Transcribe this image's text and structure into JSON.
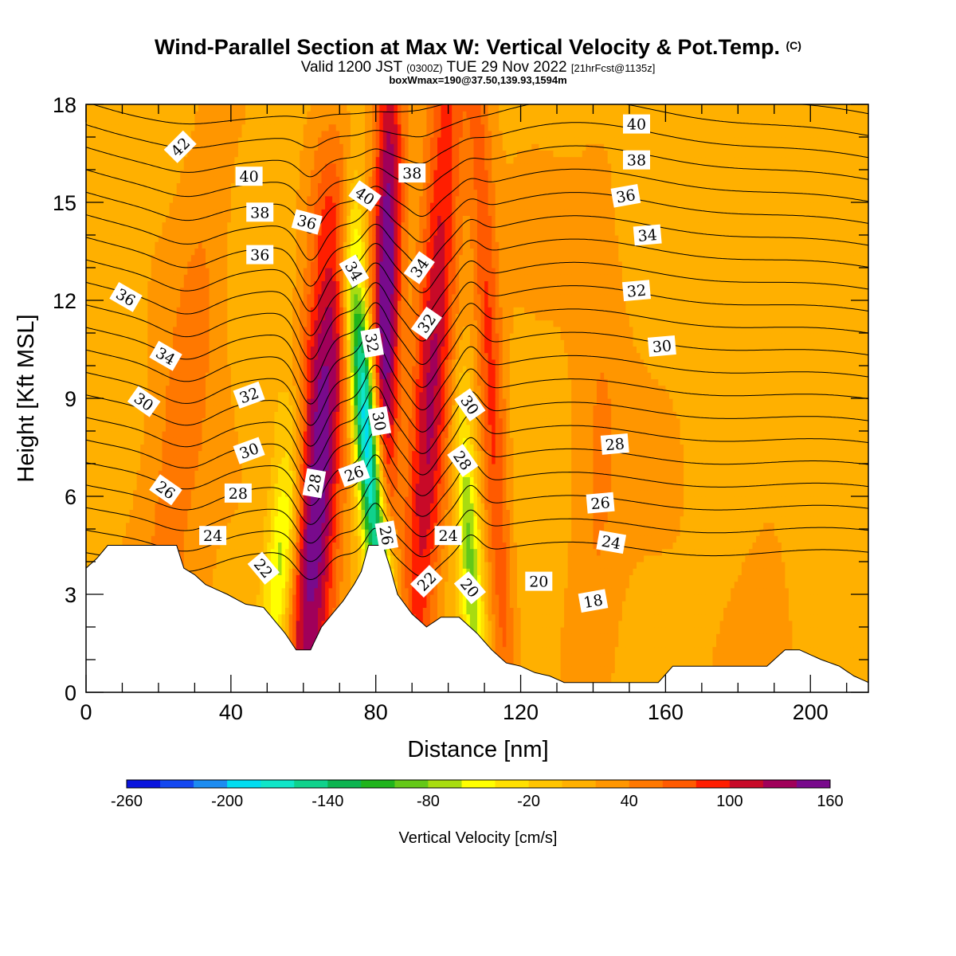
{
  "header": {
    "title": "Wind-Parallel Section at Max W: Vertical Velocity & Pot.Temp.",
    "copyright": "(C)",
    "valid_prefix": "Valid 1200 JST",
    "valid_utc": "(0300Z)",
    "valid_date": "TUE 29 Nov 2022",
    "forecast": "[21hrFcst@1135z]",
    "boxinfo": "boxWmax=190@37.50,139.93,1594m"
  },
  "chart_data": {
    "type": "heatmap",
    "title": "Wind-Parallel Section at Max W: Vertical Velocity & Pot.Temp.",
    "xlabel": "Distance [nm]",
    "ylabel": "Height [Kft MSL]",
    "xlim": [
      0,
      216
    ],
    "ylim": [
      0,
      18
    ],
    "xticks": [
      "0",
      "40",
      "80",
      "120",
      "160",
      "200"
    ],
    "yticks": [
      "0",
      "3",
      "6",
      "9",
      "12",
      "15",
      "18"
    ],
    "colorbar": {
      "label": "Vertical Velocity [cm/s]",
      "ticks": [
        "-260",
        "-200",
        "-140",
        "-80",
        "-20",
        "40",
        "100",
        "160"
      ],
      "bin_edges": [
        -260,
        -240,
        -220,
        -200,
        -180,
        -160,
        -140,
        -120,
        -100,
        -80,
        -60,
        -40,
        -20,
        0,
        20,
        40,
        60,
        80,
        100,
        120,
        140,
        160
      ],
      "colors": [
        "#0a14dc",
        "#1448f0",
        "#1c8cf0",
        "#00dcf0",
        "#10e6c8",
        "#10d28c",
        "#0cb450",
        "#20b41c",
        "#64c818",
        "#a8dc10",
        "#ffff00",
        "#ffe000",
        "#ffc400",
        "#ffb000",
        "#ff9600",
        "#ff7800",
        "#ff5a00",
        "#ff1e00",
        "#c80a28",
        "#a0005a",
        "#780a8c"
      ]
    },
    "terrain_height": {
      "x": [
        0,
        3,
        6,
        20,
        25,
        27,
        30,
        33,
        39,
        44,
        49,
        52,
        55,
        58,
        62,
        65,
        68,
        71,
        74,
        76,
        78,
        80,
        82,
        84,
        86,
        90,
        94,
        98,
        103,
        108,
        112,
        116,
        120,
        124,
        128,
        132,
        140,
        150,
        158,
        162,
        170,
        180,
        188,
        193,
        197,
        203,
        208,
        212,
        216
      ],
      "y": [
        3.8,
        4.1,
        4.5,
        4.5,
        4.5,
        3.8,
        3.6,
        3.3,
        3.0,
        2.7,
        2.6,
        2.2,
        1.8,
        1.3,
        1.3,
        2.0,
        2.4,
        2.8,
        3.3,
        3.7,
        4.5,
        4.5,
        4.5,
        3.8,
        3.0,
        2.4,
        2.0,
        2.3,
        2.3,
        1.8,
        1.3,
        0.9,
        0.8,
        0.6,
        0.5,
        0.3,
        0.3,
        0.3,
        0.3,
        0.8,
        0.8,
        0.8,
        0.8,
        1.3,
        1.3,
        1.0,
        0.8,
        0.5,
        0.3
      ]
    },
    "vertical_velocity_features": [
      {
        "x_base": 61,
        "x_top": 68,
        "y_base": 2.0,
        "y_top": 13.2,
        "width": 7,
        "peak": 160
      },
      {
        "x_base": 53,
        "x_top": 57,
        "y_base": 2.0,
        "y_top": 7.6,
        "width": 4.5,
        "peak": -110
      },
      {
        "x_base": 82,
        "x_top": 74,
        "y_base": 2.6,
        "y_top": 12.5,
        "width": 3.5,
        "peak": -230
      },
      {
        "x_base": 82,
        "x_top": 84,
        "y_base": 7.0,
        "y_top": 18.5,
        "width": 4.0,
        "peak": 150
      },
      {
        "x_base": 92,
        "x_top": 100,
        "y_base": 3.0,
        "y_top": 18.5,
        "width": 5.5,
        "peak": 110
      },
      {
        "x_base": 107,
        "x_top": 104,
        "y_base": 2.0,
        "y_top": 8.3,
        "width": 3.0,
        "peak": -95
      },
      {
        "x_base": 115,
        "x_top": 108,
        "y_base": 2.0,
        "y_top": 18.5,
        "width": 3.5,
        "peak": 70
      },
      {
        "x_base": 22,
        "x_top": 38,
        "y_base": 4.5,
        "y_top": 18.5,
        "width": 9,
        "peak": 40
      },
      {
        "x_base": 140,
        "x_top": 143,
        "y_base": 0.5,
        "y_top": 14.0,
        "width": 7,
        "peak": 25
      },
      {
        "x_base": 185,
        "x_top": 195,
        "y_base": 0.5,
        "y_top": 18.5,
        "width": 8,
        "peak": 15
      },
      {
        "x_base": 180,
        "x_top": 200,
        "y_base": 4.0,
        "y_top": 18.5,
        "width": 12,
        "peak": -5
      }
    ],
    "theta_contours": {
      "levels": [
        18,
        19,
        20,
        21,
        22,
        23,
        24,
        25,
        26,
        27,
        28,
        29,
        30,
        31,
        32,
        33,
        34,
        35,
        36,
        37,
        38,
        39,
        40,
        41,
        42,
        43
      ],
      "labels": [
        {
          "text": "42",
          "x": 26,
          "y": 16.7,
          "angle": -45
        },
        {
          "text": "40",
          "x": 45,
          "y": 15.8,
          "angle": 0
        },
        {
          "text": "38",
          "x": 48,
          "y": 14.7,
          "angle": 0
        },
        {
          "text": "36",
          "x": 61,
          "y": 14.4,
          "angle": 15
        },
        {
          "text": "36",
          "x": 48,
          "y": 13.4,
          "angle": 0
        },
        {
          "text": "36",
          "x": 11,
          "y": 12.1,
          "angle": 30
        },
        {
          "text": "34",
          "x": 22,
          "y": 10.3,
          "angle": 30
        },
        {
          "text": "32",
          "x": 45,
          "y": 9.1,
          "angle": -20
        },
        {
          "text": "30",
          "x": 16,
          "y": 8.9,
          "angle": 35
        },
        {
          "text": "30",
          "x": 45,
          "y": 7.4,
          "angle": -20
        },
        {
          "text": "26",
          "x": 22,
          "y": 6.2,
          "angle": 35
        },
        {
          "text": "28",
          "x": 42,
          "y": 6.1,
          "angle": 0
        },
        {
          "text": "24",
          "x": 35,
          "y": 4.8,
          "angle": 0
        },
        {
          "text": "22",
          "x": 49,
          "y": 3.8,
          "angle": 50
        },
        {
          "text": "28",
          "x": 63,
          "y": 6.4,
          "angle": -80
        },
        {
          "text": "26",
          "x": 74,
          "y": 6.7,
          "angle": -20
        },
        {
          "text": "40",
          "x": 77,
          "y": 15.2,
          "angle": 35
        },
        {
          "text": "38",
          "x": 90,
          "y": 15.9,
          "angle": 0
        },
        {
          "text": "34",
          "x": 74,
          "y": 12.9,
          "angle": 60
        },
        {
          "text": "34",
          "x": 92,
          "y": 13.0,
          "angle": -55
        },
        {
          "text": "32",
          "x": 79,
          "y": 10.7,
          "angle": 80
        },
        {
          "text": "32",
          "x": 94,
          "y": 11.3,
          "angle": -55
        },
        {
          "text": "30",
          "x": 81,
          "y": 8.3,
          "angle": 80
        },
        {
          "text": "30",
          "x": 106,
          "y": 8.8,
          "angle": 55
        },
        {
          "text": "28",
          "x": 104,
          "y": 7.1,
          "angle": 55
        },
        {
          "text": "26",
          "x": 83,
          "y": 4.8,
          "angle": 80
        },
        {
          "text": "24",
          "x": 100,
          "y": 4.8,
          "angle": 0
        },
        {
          "text": "22",
          "x": 94,
          "y": 3.4,
          "angle": -45
        },
        {
          "text": "20",
          "x": 106,
          "y": 3.2,
          "angle": 50
        },
        {
          "text": "20",
          "x": 125,
          "y": 3.4,
          "angle": 0
        },
        {
          "text": "18",
          "x": 140,
          "y": 2.8,
          "angle": -10
        },
        {
          "text": "40",
          "x": 152,
          "y": 17.4,
          "angle": 0
        },
        {
          "text": "38",
          "x": 152,
          "y": 16.3,
          "angle": 0
        },
        {
          "text": "36",
          "x": 149,
          "y": 15.2,
          "angle": -10
        },
        {
          "text": "34",
          "x": 155,
          "y": 14.0,
          "angle": -5
        },
        {
          "text": "32",
          "x": 152,
          "y": 12.3,
          "angle": -5
        },
        {
          "text": "30",
          "x": 159,
          "y": 10.6,
          "angle": -5
        },
        {
          "text": "28",
          "x": 146,
          "y": 7.6,
          "angle": -5
        },
        {
          "text": "26",
          "x": 142,
          "y": 5.8,
          "angle": -5
        },
        {
          "text": "24",
          "x": 145,
          "y": 4.6,
          "angle": 10
        }
      ]
    }
  }
}
